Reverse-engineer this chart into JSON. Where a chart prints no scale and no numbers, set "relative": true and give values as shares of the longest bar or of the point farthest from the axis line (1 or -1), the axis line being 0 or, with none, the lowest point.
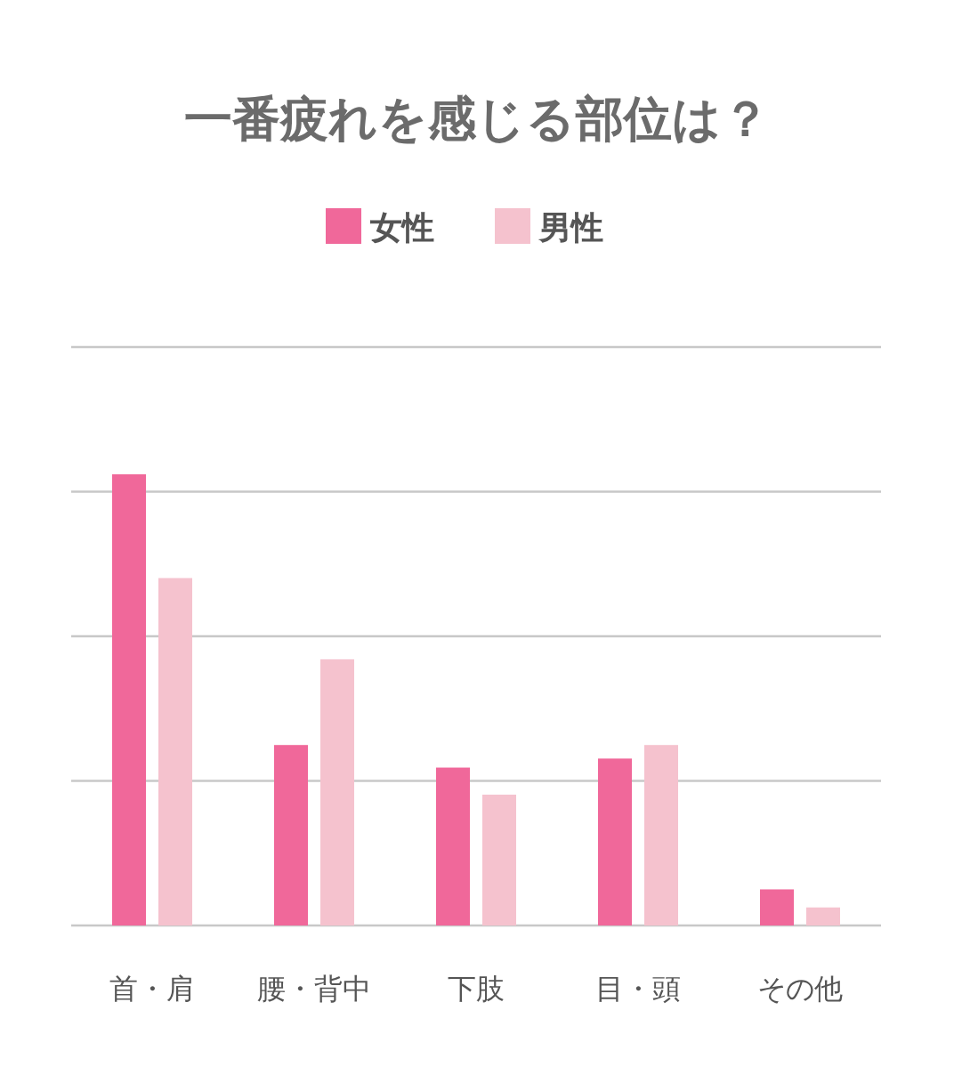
{
  "chart_data": {
    "type": "bar",
    "title": "一番疲れを感じる部位は？",
    "categories": [
      "首・肩",
      "腰・背中",
      "下肢",
      "目・頭",
      "その他"
    ],
    "relative": true,
    "grid": "y",
    "legend": "top",
    "series": [
      {
        "name": "女性",
        "color": "#f0689a",
        "values": [
          1,
          0.4,
          0.35,
          0.37,
          0.08
        ]
      },
      {
        "name": "男性",
        "color": "#f5c2ce",
        "values": [
          0.77,
          0.59,
          0.29,
          0.4,
          0.04
        ]
      }
    ]
  }
}
